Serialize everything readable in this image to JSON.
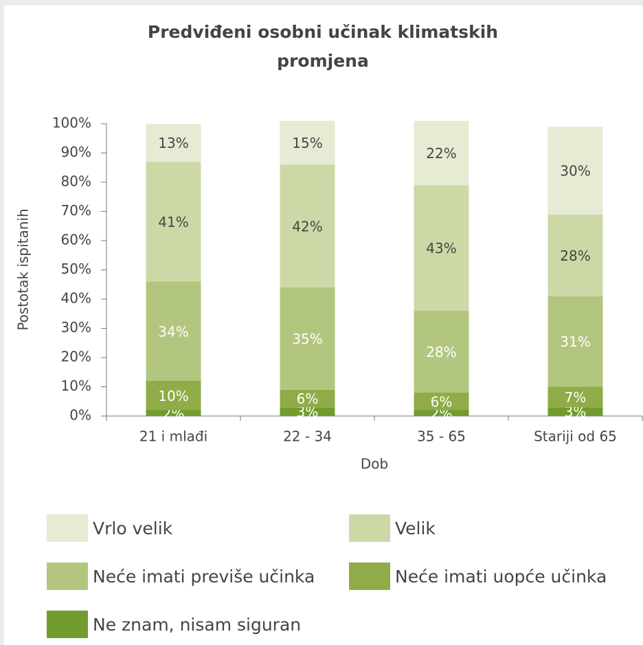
{
  "chart_data": {
    "type": "stacked_bar",
    "title": "Predviđeni osobni učinak klimatskih promjena",
    "xlabel": "Dob",
    "ylabel": "Postotak ispitanih",
    "categories": [
      "21 i mlađi",
      "22 - 34",
      "35 - 65",
      "Stariji od 65"
    ],
    "series": [
      {
        "name": "Vrlo velik",
        "color": "#e6ebd3",
        "values": [
          13,
          15,
          22,
          30
        ],
        "value_labels": [
          "13%",
          "15%",
          "22%",
          "30%"
        ]
      },
      {
        "name": "Velik",
        "color": "#ccd9a6",
        "values": [
          41,
          42,
          43,
          28
        ],
        "value_labels": [
          "41%",
          "42%",
          "43%",
          "28%"
        ]
      },
      {
        "name": "Neće imati previše učinka",
        "color": "#b3c67f",
        "values": [
          34,
          35,
          28,
          31
        ],
        "value_labels": [
          "34%",
          "35%",
          "28%",
          "31%"
        ]
      },
      {
        "name": "Neće imati uopće učinka",
        "color": "#8fac48",
        "values": [
          10,
          6,
          6,
          7
        ],
        "value_labels": [
          "10%",
          "6%",
          "6%",
          "7%"
        ]
      },
      {
        "name": "Ne znam, nisam siguran",
        "color": "#729c2e",
        "values": [
          2,
          3,
          2,
          3
        ],
        "value_labels": [
          "2%",
          "3%",
          "2%",
          "3%"
        ]
      }
    ],
    "ylim": [
      0,
      100
    ],
    "yticks": [
      {
        "value": 0,
        "label": "0%"
      },
      {
        "value": 10,
        "label": "10%"
      },
      {
        "value": 20,
        "label": "20%"
      },
      {
        "value": 30,
        "label": "30%"
      },
      {
        "value": 40,
        "label": "40%"
      },
      {
        "value": 50,
        "label": "50%"
      },
      {
        "value": 60,
        "label": "60%"
      },
      {
        "value": 70,
        "label": "70%"
      },
      {
        "value": 80,
        "label": "80%"
      },
      {
        "value": 90,
        "label": "90%"
      },
      {
        "value": 100,
        "label": "100%"
      }
    ],
    "grid": false
  }
}
